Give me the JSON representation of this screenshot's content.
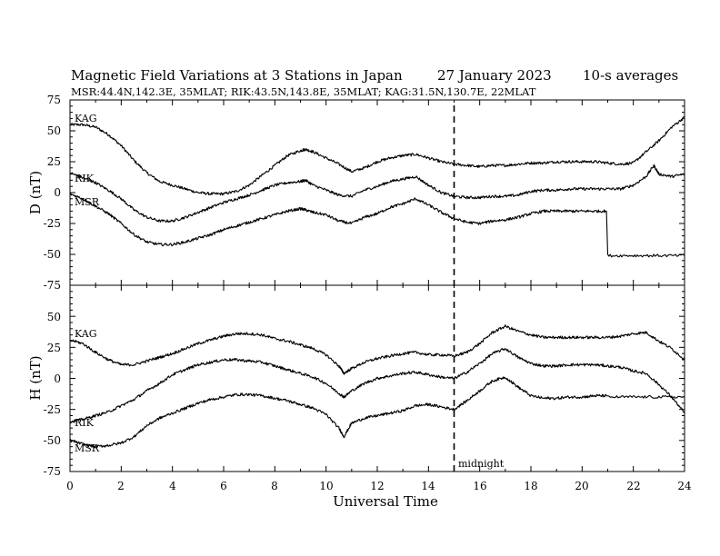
{
  "header": {
    "title": "Magnetic Field Variations at 3 Stations in Japan",
    "date": "27 January  2023",
    "averaging": "10-s averages",
    "stations": "MSR:44.4N,142.3E, 35MLAT;  RIK:43.5N,143.8E, 35MLAT;  KAG:31.5N,130.7E, 22MLAT"
  },
  "chart_data": [
    {
      "type": "line",
      "ylabel": "D (nT)",
      "ylim": [
        -75,
        75
      ],
      "yticks": [
        "75",
        "50",
        "25",
        "0",
        "-25",
        "-50",
        "-75"
      ],
      "xlim": [
        0,
        24
      ],
      "series": [
        {
          "name": "KAG",
          "x": [
            0,
            0.5,
            1,
            1.5,
            2,
            2.5,
            3,
            3.5,
            4,
            4.5,
            5,
            5.5,
            6,
            6.5,
            7,
            7.5,
            8,
            8.5,
            9,
            9.2,
            9.5,
            10,
            10.5,
            11,
            11.5,
            12,
            12.5,
            13,
            13.5,
            14,
            14.5,
            15,
            15.5,
            16,
            16.5,
            17,
            17.5,
            18,
            18.5,
            19,
            19.5,
            20,
            20.5,
            21,
            21.5,
            22,
            22.5,
            23,
            23.5,
            24
          ],
          "y": [
            55,
            55,
            53,
            47,
            38,
            26,
            16,
            9,
            6,
            3,
            0,
            -1,
            -1,
            1,
            6,
            14,
            22,
            30,
            34,
            35,
            33,
            28,
            23,
            17,
            20,
            25,
            28,
            30,
            31,
            28,
            25,
            23,
            22,
            21,
            22,
            22,
            23,
            24,
            24,
            25,
            25,
            25,
            25,
            24,
            23,
            24,
            33,
            42,
            53,
            61
          ]
        },
        {
          "name": "RIK",
          "x": [
            0,
            0.5,
            1,
            1.5,
            2,
            2.5,
            3,
            3.5,
            4,
            4.5,
            5,
            5.5,
            6,
            6.5,
            7,
            7.5,
            8,
            8.5,
            9,
            9.2,
            9.5,
            10,
            10.5,
            11,
            11.5,
            12,
            12.5,
            13,
            13.5,
            14,
            14.5,
            15,
            15.5,
            16,
            16.5,
            17,
            17.5,
            18,
            18.5,
            19,
            19.5,
            20,
            20.5,
            21,
            21.5,
            22,
            22.5,
            22.8,
            23,
            23.5,
            24
          ],
          "y": [
            16,
            12,
            8,
            2,
            -5,
            -14,
            -20,
            -23,
            -23,
            -20,
            -16,
            -12,
            -8,
            -5,
            -2,
            2,
            6,
            8,
            9,
            10,
            6,
            2,
            -2,
            -3,
            2,
            5,
            9,
            11,
            13,
            6,
            0,
            -3,
            -4,
            -4,
            -3,
            -3,
            -2,
            1,
            2,
            2,
            3,
            3,
            3,
            3,
            3,
            6,
            13,
            22,
            15,
            13,
            15
          ]
        },
        {
          "name": "MSR",
          "x": [
            0,
            0.5,
            1,
            1.5,
            2,
            2.5,
            3,
            3.5,
            4,
            4.5,
            5,
            5.5,
            6,
            6.5,
            7,
            7.5,
            8,
            8.5,
            9,
            9.2,
            9.5,
            10,
            10.5,
            11,
            11.5,
            12,
            12.5,
            13,
            13.5,
            14,
            14.5,
            15,
            15.5,
            16,
            16.5,
            17,
            17.5,
            18,
            18.5,
            19,
            19.5,
            20,
            20.5,
            20.95,
            21.0,
            22,
            23,
            24
          ],
          "y": [
            -1,
            -5,
            -11,
            -17,
            -25,
            -34,
            -40,
            -42,
            -42,
            -40,
            -37,
            -34,
            -30,
            -27,
            -24,
            -21,
            -18,
            -15,
            -13,
            -14,
            -16,
            -18,
            -23,
            -25,
            -20,
            -17,
            -12,
            -9,
            -5,
            -10,
            -16,
            -21,
            -24,
            -25,
            -23,
            -22,
            -20,
            -17,
            -15,
            -15,
            -15,
            -15,
            -15,
            -15,
            -51,
            -51,
            -51,
            -51
          ]
        }
      ]
    },
    {
      "type": "line",
      "ylabel": "H (nT)",
      "ylim": [
        -75,
        75
      ],
      "yticks": [
        "75",
        "50",
        "25",
        "0",
        "-25",
        "-50",
        "-75"
      ],
      "xlim": [
        0,
        24
      ],
      "xticks": [
        "0",
        "2",
        "4",
        "6",
        "8",
        "10",
        "12",
        "14",
        "16",
        "18",
        "20",
        "22",
        "24"
      ],
      "xlabel": "Universal Time",
      "series": [
        {
          "name": "KAG",
          "x": [
            0,
            0.5,
            1,
            1.5,
            2,
            2.5,
            3,
            3.5,
            4,
            4.5,
            5,
            5.5,
            6,
            6.5,
            7,
            7.5,
            8,
            8.5,
            9,
            9.5,
            10,
            10.5,
            10.7,
            11,
            11.5,
            12,
            12.5,
            13,
            13.5,
            14,
            14.5,
            15,
            15.5,
            16,
            16.5,
            17,
            17.5,
            18,
            18.5,
            19,
            19.5,
            20,
            20.5,
            21,
            21.5,
            22,
            22.5,
            23,
            23.5,
            24
          ],
          "y": [
            31,
            28,
            21,
            15,
            11,
            11,
            14,
            17,
            20,
            24,
            28,
            31,
            34,
            36,
            36,
            35,
            32,
            30,
            27,
            24,
            19,
            10,
            4,
            8,
            13,
            16,
            18,
            20,
            21,
            19,
            19,
            18,
            21,
            28,
            37,
            42,
            38,
            35,
            33,
            33,
            33,
            33,
            33,
            33,
            34,
            36,
            37,
            30,
            24,
            15
          ]
        },
        {
          "name": "RIK",
          "x": [
            0,
            0.5,
            1,
            1.5,
            2,
            2.5,
            3,
            3.5,
            4,
            4.5,
            5,
            5.5,
            6,
            6.5,
            7,
            7.5,
            8,
            8.5,
            9,
            9.5,
            10,
            10.5,
            10.7,
            11,
            11.5,
            12,
            12.5,
            13,
            13.5,
            14,
            14.5,
            15,
            15.5,
            16,
            16.5,
            17,
            17.5,
            18,
            18.5,
            19,
            19.5,
            20,
            20.5,
            21,
            21.5,
            22,
            22.5,
            23,
            23.5,
            24
          ],
          "y": [
            -35,
            -33,
            -30,
            -27,
            -22,
            -17,
            -10,
            -4,
            3,
            7,
            11,
            13,
            15,
            15,
            14,
            13,
            10,
            7,
            4,
            1,
            -4,
            -12,
            -15,
            -10,
            -4,
            0,
            2,
            4,
            5,
            3,
            1,
            0,
            5,
            12,
            20,
            24,
            17,
            12,
            10,
            10,
            11,
            11,
            11,
            10,
            9,
            6,
            4,
            -5,
            -15,
            -28
          ]
        },
        {
          "name": "MSR",
          "x": [
            0,
            0.5,
            1,
            1.5,
            2,
            2.5,
            3,
            3.5,
            4,
            4.5,
            5,
            5.5,
            6,
            6.5,
            7,
            7.5,
            8,
            8.5,
            9,
            9.5,
            10,
            10.5,
            10.7,
            11,
            11.5,
            12,
            12.5,
            13,
            13.5,
            14,
            14.5,
            15,
            15.5,
            16,
            16.5,
            17,
            17.5,
            18,
            18.5,
            19,
            19.5,
            20,
            20.5,
            20.95,
            21.0,
            22,
            23,
            24
          ],
          "y": [
            -50,
            -53,
            -55,
            -54,
            -52,
            -47,
            -38,
            -32,
            -28,
            -24,
            -20,
            -17,
            -15,
            -13,
            -13,
            -14,
            -16,
            -18,
            -21,
            -24,
            -29,
            -40,
            -47,
            -36,
            -32,
            -30,
            -28,
            -26,
            -22,
            -21,
            -23,
            -25,
            -18,
            -10,
            -2,
            1,
            -7,
            -14,
            -16,
            -16,
            -15,
            -15,
            -14,
            -14,
            -15,
            -15,
            -15,
            -15
          ]
        }
      ]
    }
  ],
  "annotations": {
    "midnight_label": "midnight",
    "midnight_ut": 15
  }
}
